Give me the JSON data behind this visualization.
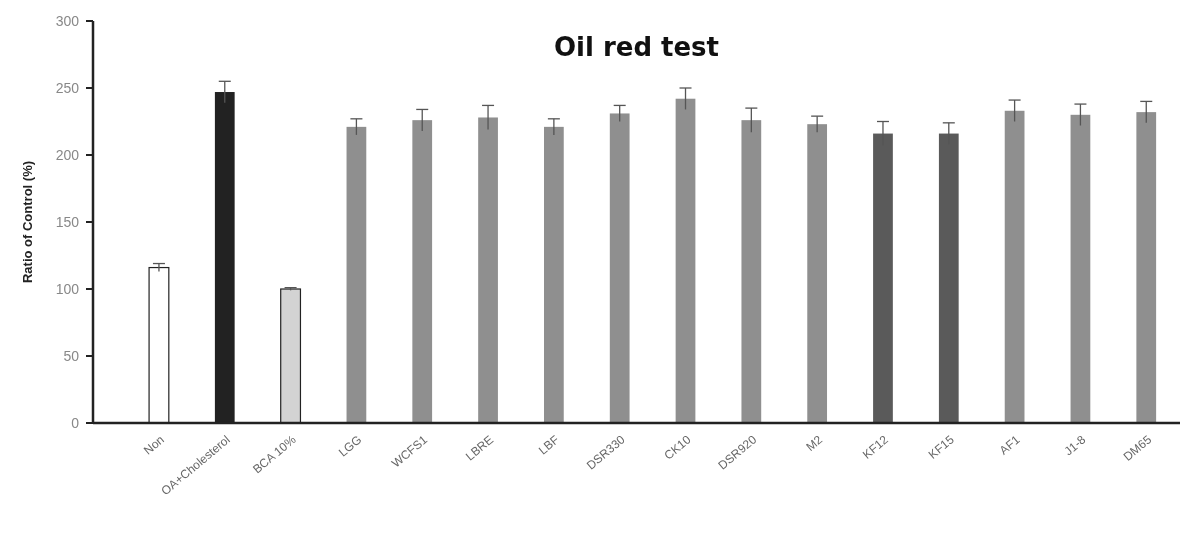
{
  "chart_data": {
    "type": "bar",
    "title": "Oil red test",
    "ylabel": "Ratio of Control (%)",
    "categories": [
      "Non",
      "OA+Cholesterol",
      "BCA 10%",
      "LGG",
      "WCFS1",
      "LBRE",
      "LBF",
      "DSR330",
      "CK10",
      "DSR920",
      "M2",
      "KF12",
      "KF15",
      "AF1",
      "J1-8",
      "DM65"
    ],
    "values": [
      116,
      247,
      100,
      221,
      226,
      228,
      221,
      231,
      242,
      226,
      223,
      216,
      216,
      233,
      230,
      232
    ],
    "errors": [
      3,
      8,
      1,
      6,
      8,
      9,
      6,
      6,
      8,
      9,
      6,
      9,
      8,
      8,
      8,
      8
    ],
    "colors": [
      "#ffffff",
      "#222222",
      "#d3d3d3",
      "#8f8f8f",
      "#8f8f8f",
      "#8f8f8f",
      "#8f8f8f",
      "#8f8f8f",
      "#8f8f8f",
      "#8f8f8f",
      "#8f8f8f",
      "#5a5a5a",
      "#5a5a5a",
      "#8f8f8f",
      "#8f8f8f",
      "#8f8f8f"
    ],
    "ylim": [
      0,
      300
    ],
    "yticks": [
      0,
      50,
      100,
      150,
      200,
      250,
      300
    ],
    "grid": false
  }
}
